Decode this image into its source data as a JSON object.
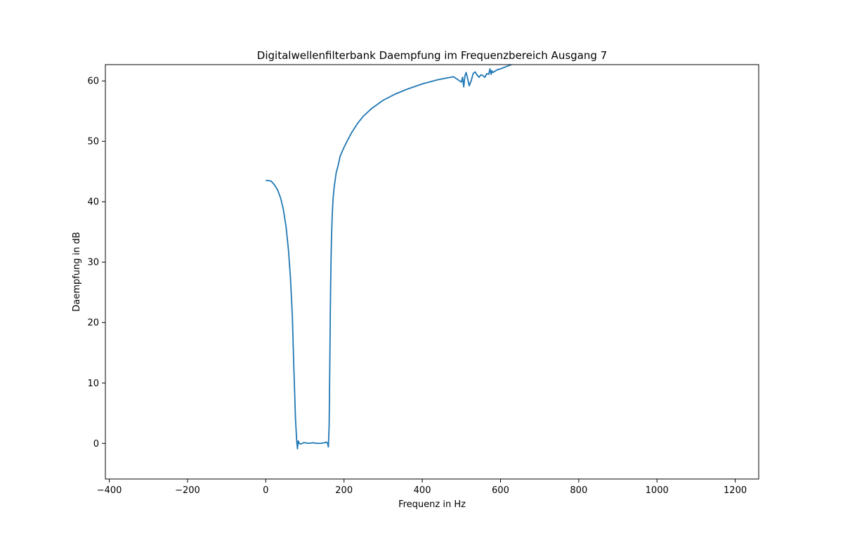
{
  "chart_data": {
    "type": "line",
    "title": "Digitalwellenfilterbank Daempfung im Frequenzbereich Ausgang 7",
    "xlabel": "Frequenz in Hz",
    "ylabel": "Daempfung in dB",
    "xlim": [
      -410,
      1260
    ],
    "ylim": [
      -5.9,
      62.7
    ],
    "xticks": [
      -400,
      -200,
      0,
      200,
      400,
      600,
      800,
      1000,
      1200
    ],
    "yticks": [
      0,
      10,
      20,
      30,
      40,
      50,
      60
    ],
    "grid": false,
    "series": [
      {
        "color": "#1f77b4",
        "x": [
          0,
          7,
          14,
          22,
          30,
          38,
          45,
          52,
          58,
          63,
          68,
          72,
          76,
          79,
          81,
          82,
          83,
          84,
          85,
          86,
          88,
          90,
          93,
          96,
          100,
          110,
          120,
          130,
          140,
          150,
          155,
          158,
          160,
          162,
          164,
          165,
          166,
          167,
          168,
          169,
          170,
          172,
          175,
          180,
          185,
          190,
          195,
          200,
          210,
          220,
          228,
          235,
          240,
          245,
          250,
          270,
          300,
          330,
          360,
          400,
          440,
          480,
          500,
          503,
          506,
          509,
          512,
          516,
          520,
          525,
          530,
          535,
          540,
          545,
          550,
          555,
          560,
          565,
          570,
          573,
          576,
          578,
          580,
          583,
          586,
          590,
          600,
          620,
          640,
          660,
          680
        ],
        "y": [
          43.5,
          43.5,
          43.4,
          42.8,
          42.0,
          40.6,
          38.7,
          35.8,
          32.0,
          27.5,
          21.0,
          12.0,
          4.0,
          0.5,
          -0.9,
          -0.2,
          0.4,
          0.3,
          0.1,
          0.0,
          -0.1,
          -0.1,
          0.0,
          0.1,
          0.1,
          0.0,
          0.1,
          0.0,
          0.0,
          0.1,
          0.2,
          0.0,
          -0.6,
          3.0,
          15.0,
          22.0,
          27.0,
          31.0,
          34.0,
          36.0,
          38.0,
          40.5,
          42.5,
          44.8,
          46.0,
          47.5,
          48.3,
          49.0,
          50.3,
          51.5,
          52.3,
          53.0,
          53.4,
          53.8,
          54.2,
          55.4,
          56.8,
          57.8,
          58.6,
          59.5,
          60.2,
          60.7,
          59.8,
          60.6,
          59.0,
          60.8,
          61.4,
          60.4,
          59.2,
          60.0,
          61.2,
          61.5,
          61.0,
          60.6,
          61.0,
          60.9,
          60.6,
          61.2,
          61.1,
          62.0,
          61.1,
          61.7,
          61.4,
          61.5,
          61.6,
          61.8,
          62.0,
          62.5,
          63.0,
          63.5,
          64.0
        ]
      }
    ]
  }
}
